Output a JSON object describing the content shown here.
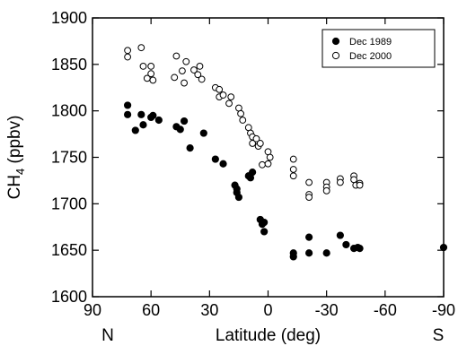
{
  "chart_data": {
    "type": "scatter",
    "xlabel": "Latitude (deg)",
    "ylabel_main": "CH",
    "ylabel_sub": "4",
    "ylabel_unit": " (ppbv)",
    "xlim": [
      90,
      -90
    ],
    "ylim": [
      1600,
      1900
    ],
    "xticks": [
      90,
      60,
      30,
      0,
      -30,
      -60,
      -90
    ],
    "yticks": [
      1600,
      1650,
      1700,
      1750,
      1800,
      1850,
      1900
    ],
    "direction_labels": {
      "north": "N",
      "south": "S"
    },
    "legend": {
      "position": "top-right"
    },
    "series": [
      {
        "name": "Dec 1989",
        "marker": "filled-circle",
        "color": "#000000",
        "points": [
          [
            72,
            1806
          ],
          [
            72,
            1796
          ],
          [
            68,
            1779
          ],
          [
            65,
            1796
          ],
          [
            64,
            1785
          ],
          [
            60,
            1793
          ],
          [
            59,
            1795
          ],
          [
            56,
            1790
          ],
          [
            47,
            1783
          ],
          [
            45,
            1780
          ],
          [
            43,
            1789
          ],
          [
            40,
            1760
          ],
          [
            33,
            1776
          ],
          [
            27,
            1748
          ],
          [
            23,
            1743
          ],
          [
            17,
            1720
          ],
          [
            16,
            1716
          ],
          [
            16,
            1712
          ],
          [
            15,
            1707
          ],
          [
            10,
            1730
          ],
          [
            9,
            1728
          ],
          [
            8,
            1734
          ],
          [
            4,
            1683
          ],
          [
            3,
            1678
          ],
          [
            2,
            1680
          ],
          [
            2,
            1670
          ],
          [
            -13,
            1643
          ],
          [
            -13,
            1647
          ],
          [
            -21,
            1664
          ],
          [
            -21,
            1647
          ],
          [
            -30,
            1647
          ],
          [
            -37,
            1666
          ],
          [
            -40,
            1656
          ],
          [
            -44,
            1652
          ],
          [
            -46,
            1653
          ],
          [
            -47,
            1652
          ],
          [
            -90,
            1653
          ]
        ]
      },
      {
        "name": "Dec 2000",
        "marker": "open-circle",
        "color": "#000000",
        "points": [
          [
            72,
            1865
          ],
          [
            72,
            1858
          ],
          [
            65,
            1868
          ],
          [
            64,
            1848
          ],
          [
            62,
            1835
          ],
          [
            60,
            1848
          ],
          [
            60,
            1840
          ],
          [
            59,
            1833
          ],
          [
            48,
            1836
          ],
          [
            47,
            1859
          ],
          [
            44,
            1843
          ],
          [
            43,
            1830
          ],
          [
            42,
            1853
          ],
          [
            38,
            1844
          ],
          [
            36,
            1839
          ],
          [
            35,
            1848
          ],
          [
            34,
            1834
          ],
          [
            27,
            1825
          ],
          [
            25,
            1823
          ],
          [
            25,
            1815
          ],
          [
            23,
            1817
          ],
          [
            20,
            1808
          ],
          [
            19,
            1815
          ],
          [
            15,
            1803
          ],
          [
            14,
            1797
          ],
          [
            13,
            1790
          ],
          [
            10,
            1782
          ],
          [
            9,
            1776
          ],
          [
            8,
            1772
          ],
          [
            8,
            1765
          ],
          [
            6,
            1770
          ],
          [
            5,
            1762
          ],
          [
            4,
            1765
          ],
          [
            3,
            1742
          ],
          [
            0,
            1756
          ],
          [
            0,
            1743
          ],
          [
            -1,
            1750
          ],
          [
            -13,
            1748
          ],
          [
            -13,
            1730
          ],
          [
            -13,
            1737
          ],
          [
            -21,
            1723
          ],
          [
            -21,
            1710
          ],
          [
            -21,
            1707
          ],
          [
            -30,
            1723
          ],
          [
            -30,
            1718
          ],
          [
            -30,
            1714
          ],
          [
            -37,
            1727
          ],
          [
            -37,
            1723
          ],
          [
            -44,
            1730
          ],
          [
            -44,
            1726
          ],
          [
            -45,
            1720
          ],
          [
            -47,
            1722
          ],
          [
            -47,
            1720
          ]
        ]
      }
    ]
  }
}
